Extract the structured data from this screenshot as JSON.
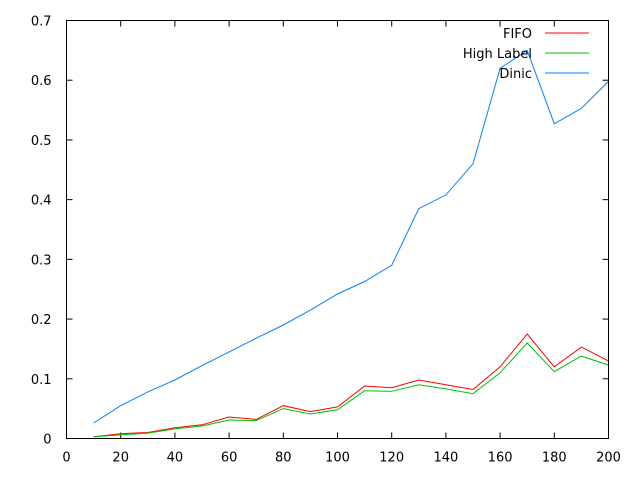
{
  "chart_data": {
    "type": "line",
    "title": "",
    "xlabel": "",
    "ylabel": "",
    "xlim": [
      0,
      200
    ],
    "ylim": [
      0,
      0.7
    ],
    "xticks": [
      0,
      20,
      40,
      60,
      80,
      100,
      120,
      140,
      160,
      180,
      200
    ],
    "yticks": [
      0,
      0.1,
      0.2,
      0.3,
      0.4,
      0.5,
      0.6,
      0.7
    ],
    "grid": false,
    "legend_position": "top-right",
    "x": [
      10,
      20,
      30,
      40,
      50,
      60,
      70,
      80,
      90,
      100,
      110,
      120,
      130,
      140,
      150,
      160,
      170,
      180,
      190,
      200
    ],
    "series": [
      {
        "name": "FIFO",
        "color": "#ff0000",
        "values": [
          0.003,
          0.008,
          0.01,
          0.018,
          0.023,
          0.036,
          0.032,
          0.055,
          0.045,
          0.053,
          0.088,
          0.085,
          0.098,
          0.09,
          0.082,
          0.12,
          0.175,
          0.12,
          0.153,
          0.13
        ]
      },
      {
        "name": "High Label",
        "color": "#00c000",
        "values": [
          0.003,
          0.006,
          0.009,
          0.016,
          0.021,
          0.031,
          0.03,
          0.05,
          0.041,
          0.048,
          0.08,
          0.079,
          0.09,
          0.083,
          0.075,
          0.11,
          0.16,
          0.112,
          0.138,
          0.123
        ]
      },
      {
        "name": "Dinic",
        "color": "#0080ff",
        "values": [
          0.026,
          0.055,
          0.078,
          0.098,
          0.122,
          0.145,
          0.168,
          0.19,
          0.215,
          0.242,
          0.263,
          0.29,
          0.385,
          0.408,
          0.46,
          0.62,
          0.65,
          0.527,
          0.553,
          0.598
        ]
      }
    ]
  }
}
